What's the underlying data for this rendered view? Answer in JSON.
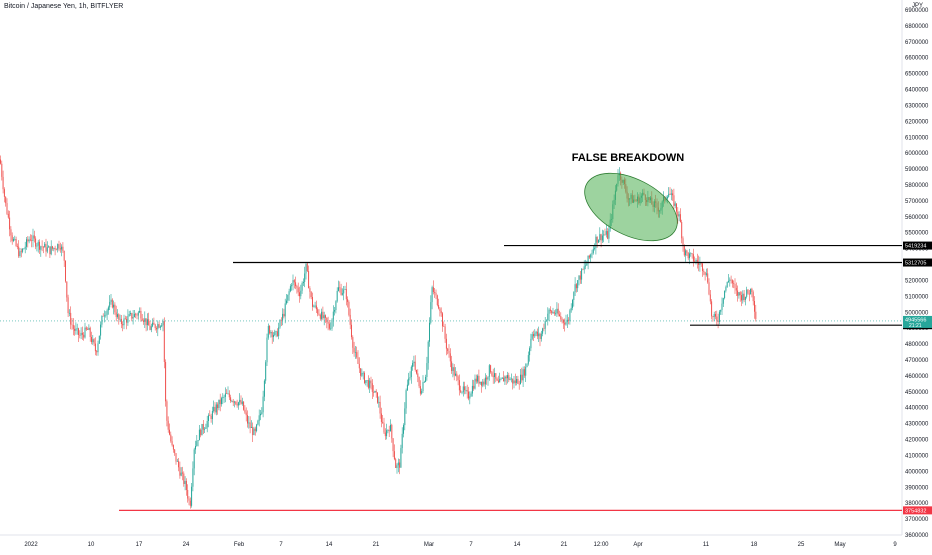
{
  "title": "Bitcoin / Japanese Yen, 1h, BITFLYER",
  "currency": "JPY",
  "annotation": "FALSE BREAKDOWN",
  "colors": {
    "up": "#26a69a",
    "down": "#ef5350",
    "level_line": "#000000",
    "support_line": "#f23645",
    "ellipse_fill": "#4caf50",
    "current_price_line": "#26a69a",
    "axis_text": "#131722"
  },
  "chart_data": {
    "type": "candlestick",
    "title": "Bitcoin / Japanese Yen, 1h, BITFLYER",
    "ylim": [
      3600000,
      6900000
    ],
    "y_ticks": [
      "6900000",
      "6800000",
      "6700000",
      "6600000",
      "6500000",
      "6400000",
      "6300000",
      "6200000",
      "6100000",
      "6000000",
      "5900000",
      "5800000",
      "5700000",
      "5600000",
      "5500000",
      "5400000",
      "5300000",
      "5200000",
      "5100000",
      "5000000",
      "4900000",
      "4800000",
      "4700000",
      "4600000",
      "4500000",
      "4400000",
      "4300000",
      "4200000",
      "4100000",
      "4000000",
      "3900000",
      "3800000",
      "3700000",
      "3600000"
    ],
    "x_ticks": [
      "2022",
      "10",
      "17",
      "24",
      "Feb",
      "7",
      "14",
      "21",
      "Mar",
      "7",
      "14",
      "21",
      "12:00",
      "Apr",
      "11",
      "18",
      "25",
      "May",
      "9"
    ],
    "price_path": [
      [
        0,
        5960000
      ],
      [
        5,
        5700000
      ],
      [
        12,
        5470000
      ],
      [
        20,
        5360000
      ],
      [
        30,
        5470000
      ],
      [
        40,
        5420000
      ],
      [
        50,
        5390000
      ],
      [
        60,
        5430000
      ],
      [
        64,
        5350000
      ],
      [
        68,
        5000000
      ],
      [
        73,
        4900000
      ],
      [
        80,
        4850000
      ],
      [
        88,
        4890000
      ],
      [
        96,
        4750000
      ],
      [
        103,
        4990000
      ],
      [
        112,
        5060000
      ],
      [
        120,
        4930000
      ],
      [
        130,
        4970000
      ],
      [
        140,
        5000000
      ],
      [
        150,
        4900000
      ],
      [
        160,
        4930000
      ],
      [
        163,
        4950000
      ],
      [
        166,
        4350000
      ],
      [
        172,
        4150000
      ],
      [
        180,
        4000000
      ],
      [
        186,
        3900000
      ],
      [
        190,
        3780000
      ],
      [
        194,
        4150000
      ],
      [
        200,
        4250000
      ],
      [
        208,
        4320000
      ],
      [
        216,
        4400000
      ],
      [
        226,
        4480000
      ],
      [
        234,
        4450000
      ],
      [
        242,
        4420000
      ],
      [
        248,
        4300000
      ],
      [
        255,
        4230000
      ],
      [
        262,
        4400000
      ],
      [
        268,
        4900000
      ],
      [
        276,
        4850000
      ],
      [
        284,
        5000000
      ],
      [
        292,
        5200000
      ],
      [
        300,
        5120000
      ],
      [
        306,
        5280000
      ],
      [
        312,
        5050000
      ],
      [
        320,
        4990000
      ],
      [
        330,
        4900000
      ],
      [
        338,
        5150000
      ],
      [
        346,
        5120000
      ],
      [
        354,
        4750000
      ],
      [
        362,
        4600000
      ],
      [
        370,
        4540000
      ],
      [
        378,
        4450000
      ],
      [
        384,
        4230000
      ],
      [
        390,
        4290000
      ],
      [
        396,
        4020000
      ],
      [
        400,
        4050000
      ],
      [
        406,
        4500000
      ],
      [
        414,
        4700000
      ],
      [
        420,
        4500000
      ],
      [
        426,
        4620000
      ],
      [
        432,
        5150000
      ],
      [
        440,
        5030000
      ],
      [
        446,
        4800000
      ],
      [
        452,
        4650000
      ],
      [
        460,
        4530000
      ],
      [
        468,
        4470000
      ],
      [
        476,
        4580000
      ],
      [
        484,
        4560000
      ],
      [
        490,
        4650000
      ],
      [
        498,
        4540000
      ],
      [
        506,
        4600000
      ],
      [
        514,
        4560000
      ],
      [
        520,
        4580000
      ],
      [
        526,
        4650000
      ],
      [
        532,
        4880000
      ],
      [
        540,
        4840000
      ],
      [
        548,
        5000000
      ],
      [
        556,
        5000000
      ],
      [
        562,
        4950000
      ],
      [
        568,
        4940000
      ],
      [
        574,
        5150000
      ],
      [
        582,
        5250000
      ],
      [
        590,
        5350000
      ],
      [
        596,
        5460000
      ],
      [
        604,
        5490000
      ],
      [
        608,
        5480000
      ],
      [
        614,
        5700000
      ],
      [
        618,
        5880000
      ],
      [
        622,
        5840000
      ],
      [
        628,
        5720000
      ],
      [
        636,
        5700000
      ],
      [
        644,
        5740000
      ],
      [
        652,
        5680000
      ],
      [
        660,
        5650000
      ],
      [
        668,
        5760000
      ],
      [
        674,
        5690000
      ],
      [
        680,
        5580000
      ],
      [
        684,
        5380000
      ],
      [
        690,
        5350000
      ],
      [
        696,
        5320000
      ],
      [
        704,
        5280000
      ],
      [
        708,
        5200000
      ],
      [
        712,
        4960000
      ],
      [
        718,
        4960000
      ],
      [
        724,
        5130000
      ],
      [
        730,
        5220000
      ],
      [
        736,
        5120000
      ],
      [
        742,
        5100000
      ],
      [
        748,
        5120000
      ],
      [
        752,
        5150000
      ],
      [
        756,
        4960000
      ]
    ],
    "horizontal_levels": [
      {
        "label": "5419234",
        "value": 5419234,
        "x_start": 504
      },
      {
        "label": "5312705",
        "value": 5312705,
        "x_start": 233
      },
      {
        "label": "4918684",
        "value": 4918684,
        "x_start": 690
      },
      {
        "label": "3754832",
        "value": 3754832,
        "x_start": 119
      }
    ],
    "current_price": {
      "label": "4945566",
      "countdown": "21:21",
      "value": 4945566
    },
    "grid": false,
    "legend": "none"
  }
}
